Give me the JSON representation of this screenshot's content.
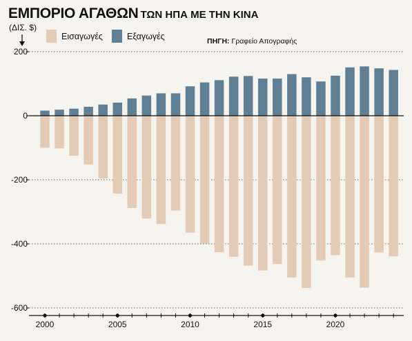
{
  "header": {
    "title_main": "ΕΜΠΟΡΙΟ ΑΓΑΘΩΝ",
    "title_sub": "ΤΩΝ ΗΠΑ ΜΕ ΤΗΝ ΚΙΝΑ",
    "unit_label": "(ΔΙΣ. $)",
    "source_label": "ΠΗΓΗ:",
    "source_text": "Γραφείο Απογραφής"
  },
  "legend": {
    "imports": "Εισαγωγές",
    "exports": "Εξαγωγές"
  },
  "colors": {
    "imports": "#e3cbb5",
    "exports": "#5f7f95",
    "background": "#f6f4ee"
  },
  "chart_data": {
    "type": "bar",
    "title": "ΕΜΠΟΡΙΟ ΑΓΑΘΩΝ ΤΩΝ ΗΠΑ ΜΕ ΤΗΝ ΚΙΝΑ",
    "ylabel": "(ΔΙΣ. $)",
    "xlabel": "",
    "ylim": [
      -600,
      200
    ],
    "yticks": [
      200,
      0,
      -200,
      -400,
      -600
    ],
    "xticks": [
      2000,
      2005,
      2010,
      2015,
      2020
    ],
    "grid": true,
    "legend_position": "top-left",
    "categories": [
      2000,
      2001,
      2002,
      2003,
      2004,
      2005,
      2006,
      2007,
      2008,
      2009,
      2010,
      2011,
      2012,
      2013,
      2014,
      2015,
      2016,
      2017,
      2018,
      2019,
      2020,
      2021,
      2022,
      2023,
      2024
    ],
    "series": [
      {
        "name": "Εισαγωγές",
        "values": [
          -100,
          -102,
          -125,
          -152,
          -196,
          -243,
          -288,
          -321,
          -338,
          -296,
          -365,
          -399,
          -426,
          -440,
          -468,
          -483,
          -463,
          -505,
          -538,
          -452,
          -435,
          -505,
          -537,
          -427,
          -439
        ]
      },
      {
        "name": "Εξαγωγές",
        "values": [
          16,
          19,
          22,
          28,
          35,
          41,
          54,
          63,
          70,
          70,
          92,
          104,
          111,
          122,
          124,
          116,
          116,
          130,
          120,
          107,
          125,
          151,
          154,
          148,
          143
        ]
      }
    ]
  }
}
